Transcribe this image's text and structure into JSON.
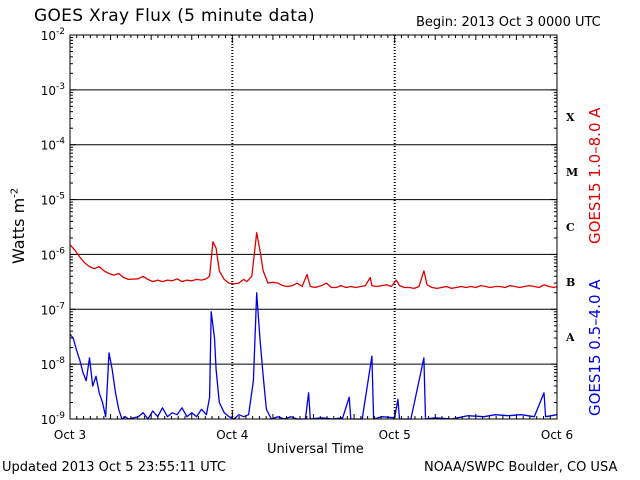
{
  "header": {
    "title": "GOES Xray Flux (5 minute data)",
    "begin": "Begin:  2013 Oct 3 0000 UTC"
  },
  "footer": {
    "updated": "Updated 2013 Oct  5 23:55:11 UTC",
    "credit": "NOAA/SWPC Boulder, CO USA"
  },
  "colors": {
    "long_channel": "#e00000",
    "short_channel": "#0000e6",
    "axis": "#000000"
  },
  "chart_data": {
    "type": "line",
    "title": "GOES Xray Flux (5 minute data)",
    "xlabel": "Universal Time",
    "ylabel": "Watts m^-2",
    "y_scale": "log",
    "ylim": [
      1e-09,
      0.01
    ],
    "xlim_days": [
      0,
      3
    ],
    "x_tick_labels": [
      "Oct 3",
      "Oct 4",
      "Oct 5",
      "Oct 6"
    ],
    "y_tick_labels": [
      {
        "base": "10",
        "exp": "-2"
      },
      {
        "base": "10",
        "exp": "-3"
      },
      {
        "base": "10",
        "exp": "-4"
      },
      {
        "base": "10",
        "exp": "-5"
      },
      {
        "base": "10",
        "exp": "-6"
      },
      {
        "base": "10",
        "exp": "-7"
      },
      {
        "base": "10",
        "exp": "-8"
      },
      {
        "base": "10",
        "exp": "-9"
      }
    ],
    "flare_classes": [
      {
        "label": "X",
        "level": 0.0001
      },
      {
        "label": "M",
        "level": 1e-05
      },
      {
        "label": "C",
        "level": 1e-06
      },
      {
        "label": "B",
        "level": 1e-07
      },
      {
        "label": "A",
        "level": 1e-08
      }
    ],
    "grid": "horizontal lines at each decade; dashed vertical lines at day boundaries",
    "series": [
      {
        "name": "GOES15 1.0–8.0 A",
        "color": "#e00000",
        "points": [
          [
            0.0,
            1.5e-06
          ],
          [
            0.03,
            1.2e-06
          ],
          [
            0.06,
            9e-07
          ],
          [
            0.09,
            7e-07
          ],
          [
            0.12,
            6e-07
          ],
          [
            0.15,
            5.5e-07
          ],
          [
            0.18,
            6e-07
          ],
          [
            0.21,
            5e-07
          ],
          [
            0.24,
            4.5e-07
          ],
          [
            0.27,
            4.2e-07
          ],
          [
            0.3,
            4.5e-07
          ],
          [
            0.33,
            3.8e-07
          ],
          [
            0.36,
            3.5e-07
          ],
          [
            0.42,
            3.6e-07
          ],
          [
            0.45,
            4e-07
          ],
          [
            0.48,
            3.5e-07
          ],
          [
            0.51,
            3.2e-07
          ],
          [
            0.54,
            3.4e-07
          ],
          [
            0.57,
            3.2e-07
          ],
          [
            0.6,
            3.4e-07
          ],
          [
            0.63,
            3.3e-07
          ],
          [
            0.66,
            3.6e-07
          ],
          [
            0.69,
            3.2e-07
          ],
          [
            0.72,
            3.4e-07
          ],
          [
            0.75,
            3.3e-07
          ],
          [
            0.78,
            3.5e-07
          ],
          [
            0.81,
            3.4e-07
          ],
          [
            0.84,
            3.6e-07
          ],
          [
            0.86,
            4e-07
          ],
          [
            0.88,
            1.7e-06
          ],
          [
            0.9,
            1.3e-06
          ],
          [
            0.92,
            5e-07
          ],
          [
            0.95,
            3.5e-07
          ],
          [
            0.98,
            3e-07
          ],
          [
            1.01,
            2.9e-07
          ],
          [
            1.04,
            3e-07
          ],
          [
            1.07,
            3.5e-07
          ],
          [
            1.09,
            3.2e-07
          ],
          [
            1.12,
            4e-07
          ],
          [
            1.15,
            2.5e-06
          ],
          [
            1.17,
            1.2e-06
          ],
          [
            1.19,
            5e-07
          ],
          [
            1.22,
            3e-07
          ],
          [
            1.25,
            3.1e-07
          ],
          [
            1.28,
            3e-07
          ],
          [
            1.31,
            2.7e-07
          ],
          [
            1.34,
            2.6e-07
          ],
          [
            1.37,
            2.7e-07
          ],
          [
            1.4,
            3e-07
          ],
          [
            1.43,
            2.6e-07
          ],
          [
            1.46,
            4.3e-07
          ],
          [
            1.48,
            2.6e-07
          ],
          [
            1.51,
            2.5e-07
          ],
          [
            1.55,
            2.7e-07
          ],
          [
            1.58,
            3e-07
          ],
          [
            1.61,
            2.5e-07
          ],
          [
            1.64,
            2.5e-07
          ],
          [
            1.67,
            2.7e-07
          ],
          [
            1.7,
            2.5e-07
          ],
          [
            1.73,
            2.6e-07
          ],
          [
            1.76,
            2.5e-07
          ],
          [
            1.79,
            2.6e-07
          ],
          [
            1.82,
            2.7e-07
          ],
          [
            1.85,
            3.8e-07
          ],
          [
            1.86,
            2.7e-07
          ],
          [
            1.89,
            2.6e-07
          ],
          [
            1.92,
            2.7e-07
          ],
          [
            1.95,
            2.8e-07
          ],
          [
            1.98,
            2.6e-07
          ],
          [
            2.01,
            3.4e-07
          ],
          [
            2.03,
            2.7e-07
          ],
          [
            2.06,
            2.5e-07
          ],
          [
            2.09,
            2.5e-07
          ],
          [
            2.12,
            2.4e-07
          ],
          [
            2.15,
            2.6e-07
          ],
          [
            2.18,
            5e-07
          ],
          [
            2.2,
            2.8e-07
          ],
          [
            2.23,
            2.5e-07
          ],
          [
            2.26,
            2.4e-07
          ],
          [
            2.29,
            2.5e-07
          ],
          [
            2.32,
            2.6e-07
          ],
          [
            2.35,
            2.4e-07
          ],
          [
            2.38,
            2.5e-07
          ],
          [
            2.41,
            2.6e-07
          ],
          [
            2.44,
            2.5e-07
          ],
          [
            2.47,
            2.6e-07
          ],
          [
            2.5,
            2.5e-07
          ],
          [
            2.53,
            2.7e-07
          ],
          [
            2.56,
            2.6e-07
          ],
          [
            2.59,
            2.5e-07
          ],
          [
            2.62,
            2.6e-07
          ],
          [
            2.65,
            2.6e-07
          ],
          [
            2.68,
            2.5e-07
          ],
          [
            2.71,
            2.7e-07
          ],
          [
            2.74,
            2.6e-07
          ],
          [
            2.77,
            2.5e-07
          ],
          [
            2.8,
            2.6e-07
          ],
          [
            2.83,
            2.7e-07
          ],
          [
            2.86,
            2.6e-07
          ],
          [
            2.89,
            2.5e-07
          ],
          [
            2.92,
            2.8e-07
          ],
          [
            2.95,
            2.6e-07
          ],
          [
            2.98,
            2.5e-07
          ],
          [
            3.0,
            2.6e-07
          ]
        ]
      },
      {
        "name": "GOES15 0.5–4.0 A",
        "color": "#0000e6",
        "points": [
          [
            0.0,
            3.5e-08
          ],
          [
            0.02,
            3e-08
          ],
          [
            0.04,
            1.8e-08
          ],
          [
            0.06,
            1.2e-08
          ],
          [
            0.08,
            7e-09
          ],
          [
            0.1,
            5e-09
          ],
          [
            0.12,
            1.3e-08
          ],
          [
            0.14,
            4e-09
          ],
          [
            0.16,
            6e-09
          ],
          [
            0.18,
            3e-09
          ],
          [
            0.2,
            2e-09
          ],
          [
            0.22,
            1.1e-09
          ],
          [
            0.24,
            1.6e-08
          ],
          [
            0.26,
            8e-09
          ],
          [
            0.28,
            3e-09
          ],
          [
            0.3,
            1.5e-09
          ],
          [
            0.32,
            1e-09
          ],
          [
            0.34,
            1.1e-09
          ],
          [
            0.36,
            1e-09
          ],
          [
            0.42,
            1.1e-09
          ],
          [
            0.45,
            1.3e-09
          ],
          [
            0.48,
            1e-09
          ],
          [
            0.51,
            1.4e-09
          ],
          [
            0.54,
            1.1e-09
          ],
          [
            0.57,
            1.6e-09
          ],
          [
            0.6,
            1.1e-09
          ],
          [
            0.63,
            1.3e-09
          ],
          [
            0.66,
            1.2e-09
          ],
          [
            0.69,
            1.6e-09
          ],
          [
            0.72,
            1.1e-09
          ],
          [
            0.75,
            1.3e-09
          ],
          [
            0.78,
            1.1e-09
          ],
          [
            0.81,
            1.5e-09
          ],
          [
            0.84,
            1.2e-09
          ],
          [
            0.86,
            2.5e-09
          ],
          [
            0.87,
            9e-08
          ],
          [
            0.89,
            3e-08
          ],
          [
            0.9,
            8e-09
          ],
          [
            0.92,
            2e-09
          ],
          [
            0.95,
            1.3e-09
          ],
          [
            0.98,
            1.1e-09
          ],
          [
            1.01,
            1e-09
          ],
          [
            1.04,
            1.2e-09
          ],
          [
            1.07,
            1.1e-09
          ],
          [
            1.1,
            1.2e-09
          ],
          [
            1.13,
            5e-09
          ],
          [
            1.15,
            2e-07
          ],
          [
            1.17,
            3e-08
          ],
          [
            1.19,
            6e-09
          ],
          [
            1.21,
            1.5e-09
          ],
          [
            1.24,
            1e-09
          ],
          [
            1.28,
            1.1e-09
          ],
          [
            1.32,
            1e-09
          ],
          [
            1.36,
            1.1e-09
          ],
          [
            1.4,
            1e-09
          ],
          [
            1.45,
            1e-09
          ],
          [
            1.47,
            3e-09
          ],
          [
            1.48,
            1e-09
          ],
          [
            1.55,
            1.05e-09
          ],
          [
            1.62,
            1e-09
          ],
          [
            1.68,
            1.05e-09
          ],
          [
            1.72,
            2.5e-09
          ],
          [
            1.73,
            1e-09
          ],
          [
            1.8,
            1e-09
          ],
          [
            1.86,
            1.4e-08
          ],
          [
            1.87,
            1e-09
          ],
          [
            1.92,
            1.1e-09
          ],
          [
            2.0,
            1.05e-09
          ],
          [
            2.02,
            2.3e-09
          ],
          [
            2.03,
            1e-09
          ],
          [
            2.1,
            1e-09
          ],
          [
            2.18,
            1.3e-08
          ],
          [
            2.19,
            1e-09
          ],
          [
            2.25,
            1.05e-09
          ],
          [
            2.35,
            1e-09
          ],
          [
            2.45,
            1.15e-09
          ],
          [
            2.55,
            1.1e-09
          ],
          [
            2.62,
            1.2e-09
          ],
          [
            2.7,
            1.15e-09
          ],
          [
            2.78,
            1.2e-09
          ],
          [
            2.86,
            1.1e-09
          ],
          [
            2.92,
            3e-09
          ],
          [
            2.93,
            1.1e-09
          ],
          [
            3.0,
            1.2e-09
          ]
        ]
      }
    ],
    "series_legend": [
      "GOES15 1.0–8.0 A",
      "GOES15 0.5–4.0 A"
    ]
  }
}
